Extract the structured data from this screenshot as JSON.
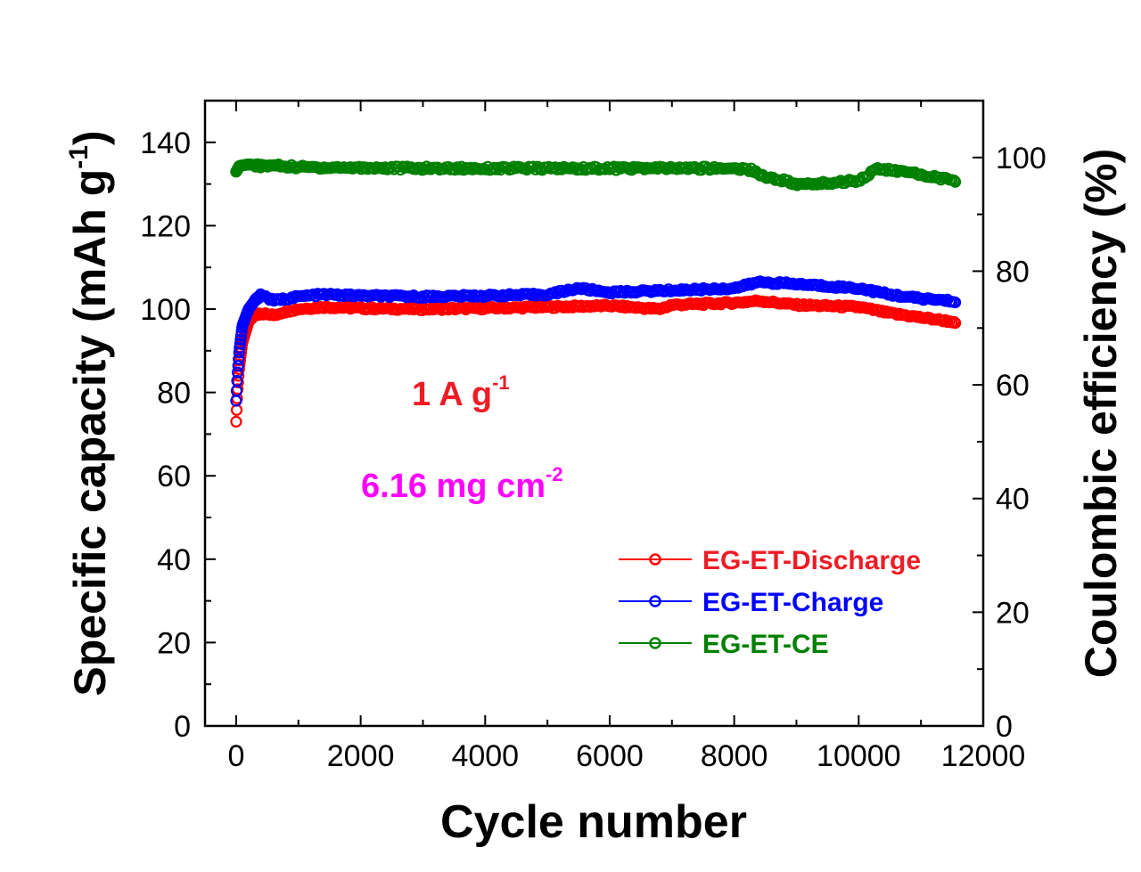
{
  "chart_data": {
    "type": "scatter",
    "xlabel": "Cycle number",
    "ylabel_left": {
      "main": "Specific capacity (mAh g",
      "sup": "-1",
      "close": ")"
    },
    "ylabel_right": "Coulombic efficiency (%)",
    "xlim": [
      -500,
      12000
    ],
    "ylim_left": [
      0,
      150
    ],
    "ylim_right": [
      0,
      110
    ],
    "x_ticks": [
      0,
      2000,
      4000,
      6000,
      8000,
      10000,
      12000
    ],
    "x_tick_labels": [
      "0",
      "2000",
      "4000",
      "6000",
      "8000",
      "10000",
      "12000"
    ],
    "y_left_ticks": [
      0,
      20,
      40,
      60,
      80,
      100,
      120,
      140
    ],
    "y_left_tick_labels": [
      "0",
      "20",
      "40",
      "60",
      "80",
      "100",
      "120",
      "140"
    ],
    "y_right_ticks": [
      0,
      20,
      40,
      60,
      80,
      100
    ],
    "y_right_tick_labels": [
      "0",
      "20",
      "40",
      "60",
      "80",
      "100"
    ],
    "annotations": [
      {
        "id": "current",
        "text": "1 A g",
        "sup": "-1",
        "color": "#ee1c25",
        "at": [
          3800,
          80
        ]
      },
      {
        "id": "loading",
        "text": "6.16 mg cm",
        "sup": "-2",
        "color": "#ff00ff",
        "at": [
          4000,
          60
        ]
      }
    ],
    "legend_position": "bottom-right",
    "series": [
      {
        "name": "EG-ET-Discharge",
        "color": "#ff0000",
        "axis": "left",
        "x": [
          0,
          20,
          50,
          100,
          200,
          300,
          400,
          600,
          800,
          1000,
          1400,
          2000,
          3000,
          4000,
          5000,
          6000,
          6800,
          7000,
          8000,
          8400,
          9000,
          10000,
          10500,
          11000,
          11500,
          11550
        ],
        "y": [
          73,
          80,
          86,
          92,
          97,
          98.5,
          99,
          98.5,
          99.5,
          100,
          100.5,
          100.2,
          100,
          100.2,
          100.5,
          100.8,
          100,
          101,
          101.5,
          102,
          101,
          100.5,
          99,
          98,
          97,
          96.5
        ]
      },
      {
        "name": "EG-ET-Charge",
        "color": "#0000ff",
        "axis": "left",
        "x": [
          0,
          20,
          50,
          100,
          200,
          300,
          400,
          600,
          800,
          1000,
          1400,
          2000,
          3000,
          4000,
          5000,
          5500,
          6000,
          7000,
          8000,
          8400,
          9000,
          9500,
          10000,
          10500,
          11000,
          11500,
          11550
        ],
        "y": [
          78,
          84,
          90,
          96,
          100,
          102,
          103.5,
          102,
          102.5,
          103,
          103.5,
          103.2,
          103,
          103.2,
          103.5,
          105,
          104,
          104.5,
          105,
          106.5,
          106,
          105.5,
          105,
          103.5,
          102.5,
          102,
          101.5
        ]
      },
      {
        "name": "EG-ET-CE",
        "color": "#008000",
        "axis": "right",
        "x": [
          0,
          50,
          200,
          400,
          600,
          1000,
          2000,
          3000,
          4000,
          5000,
          6000,
          7000,
          8000,
          8300,
          8500,
          8800,
          9000,
          9500,
          10000,
          10300,
          10500,
          11000,
          11500,
          11550
        ],
        "y": [
          97.5,
          98.5,
          98.8,
          98.5,
          98.6,
          98.3,
          98.2,
          98.1,
          98.1,
          98.1,
          98.1,
          98.1,
          98.1,
          97.8,
          96.5,
          96,
          95.2,
          95.5,
          96,
          98,
          97.8,
          97,
          96,
          95.5
        ]
      }
    ]
  }
}
